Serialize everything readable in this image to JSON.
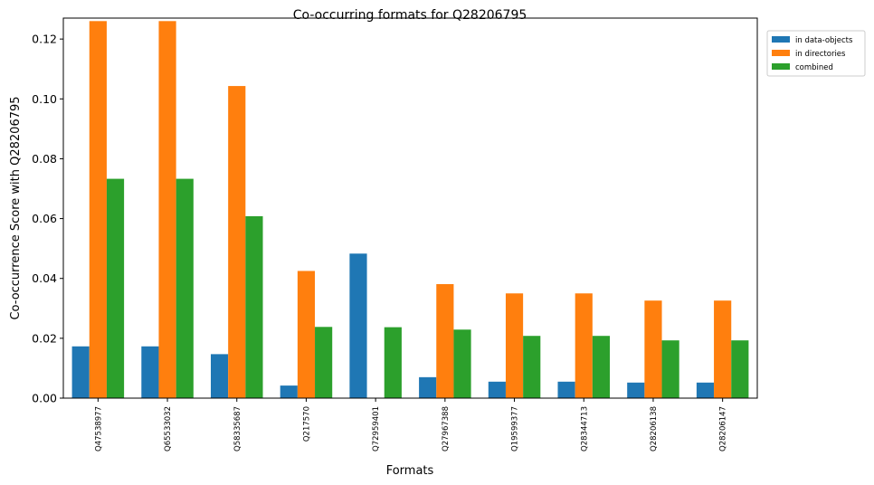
{
  "chart_data": {
    "type": "bar",
    "title": "Co-occurring formats for Q28206795",
    "xlabel": "Formats",
    "ylabel": "Co-occurrence Score with Q28206795",
    "ylim": [
      0,
      0.127
    ],
    "yticks": [
      "0.00",
      "0.02",
      "0.04",
      "0.06",
      "0.08",
      "0.10",
      "0.12"
    ],
    "ytick_values": [
      0,
      0.02,
      0.04,
      0.06,
      0.08,
      0.1,
      0.12
    ],
    "categories": [
      "Q47538977",
      "Q65533032",
      "Q58335687",
      "Q217570",
      "Q72959401",
      "Q27967388",
      "Q19599377",
      "Q28344713",
      "Q28206138",
      "Q28206147"
    ],
    "series": [
      {
        "name": "in data-objects",
        "color": "#1f77b4",
        "values": [
          0.0173,
          0.0173,
          0.0147,
          0.0042,
          0.0483,
          0.007,
          0.0055,
          0.0055,
          0.0052,
          0.0052
        ]
      },
      {
        "name": "in directories",
        "color": "#ff7f0e",
        "values": [
          0.126,
          0.126,
          0.1043,
          0.0425,
          0.0,
          0.0381,
          0.035,
          0.035,
          0.0326,
          0.0326
        ]
      },
      {
        "name": "combined",
        "color": "#2ca02c",
        "values": [
          0.0733,
          0.0733,
          0.0608,
          0.0238,
          0.0237,
          0.0229,
          0.0208,
          0.0208,
          0.0193,
          0.0193
        ]
      }
    ],
    "legend_position": "outside-top-right",
    "grid": false
  }
}
